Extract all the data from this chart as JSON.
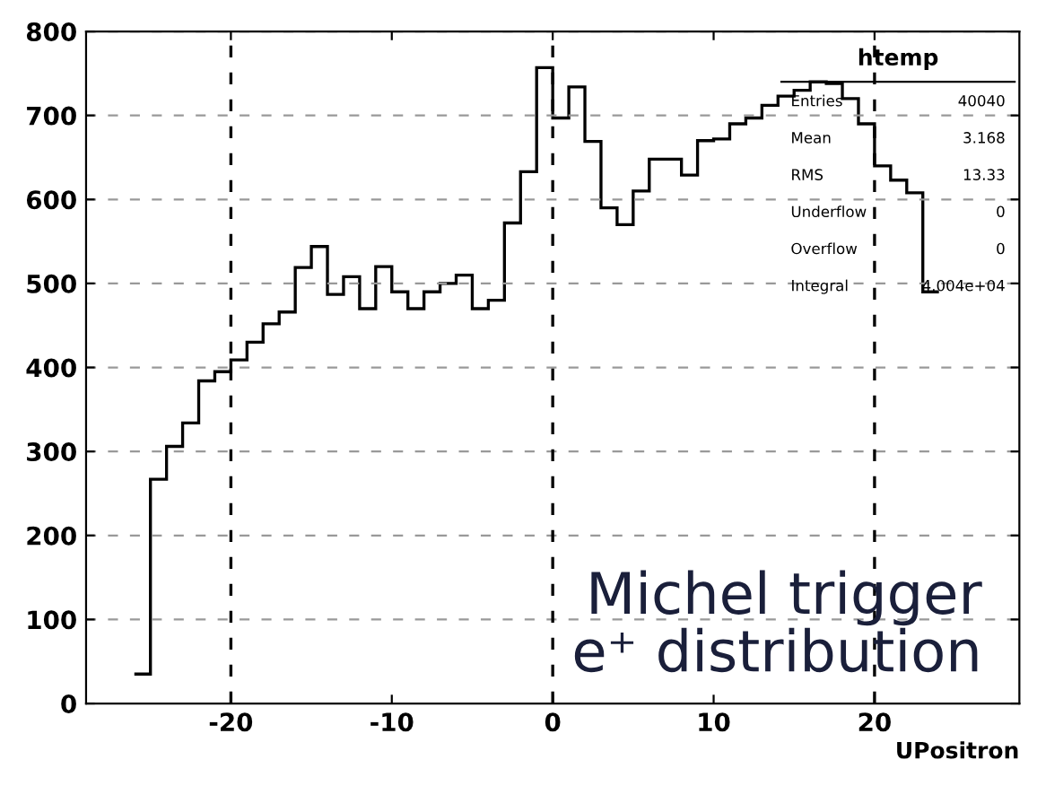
{
  "chart_data": {
    "type": "histogram",
    "xlabel": "UPositron",
    "bins": [
      -26,
      -25,
      -24,
      -23,
      -22,
      -21,
      -20,
      -19,
      -18,
      -17,
      -16,
      -15,
      -14,
      -13,
      -12,
      -11,
      -10,
      -9,
      -8,
      -7,
      -6,
      -5,
      -4,
      -3,
      -2,
      -1,
      0,
      1,
      2,
      3,
      4,
      5,
      6,
      7,
      8,
      9,
      10,
      11,
      12,
      13,
      14,
      15,
      16,
      17,
      18,
      19,
      20,
      21,
      22,
      23,
      24
    ],
    "values": [
      35,
      267,
      306,
      334,
      384,
      395,
      409,
      430,
      452,
      466,
      519,
      544,
      487,
      508,
      470,
      520,
      490,
      470,
      490,
      500,
      510,
      470,
      480,
      572,
      633,
      757,
      697,
      734,
      669,
      590,
      570,
      610,
      648,
      648,
      629,
      670,
      672,
      690,
      697,
      712,
      723,
      730,
      740,
      738,
      720,
      690,
      640,
      623,
      608,
      490
    ],
    "color": "#000000",
    "xlim": [
      -29,
      29
    ],
    "xticks": [
      -20,
      -10,
      0,
      10,
      20
    ],
    "ylim": [
      0,
      800
    ],
    "yticks": [
      0,
      100,
      200,
      300,
      400,
      500,
      600,
      700,
      800
    ],
    "grid": "y",
    "ref_lines": [
      {
        "axis": "x",
        "value": -20,
        "label": null
      },
      {
        "axis": "x",
        "value": 0,
        "label": null
      },
      {
        "axis": "x",
        "value": 20,
        "label": null
      }
    ],
    "annotations": [
      "htemp",
      "Entries",
      "40040",
      "Mean",
      "3.168",
      "RMS",
      "13.33",
      "Underflow",
      "0",
      "Overflow",
      "0",
      "Integral",
      "4.004e+04",
      "Michel trigger\ne⁺ distribution"
    ]
  }
}
